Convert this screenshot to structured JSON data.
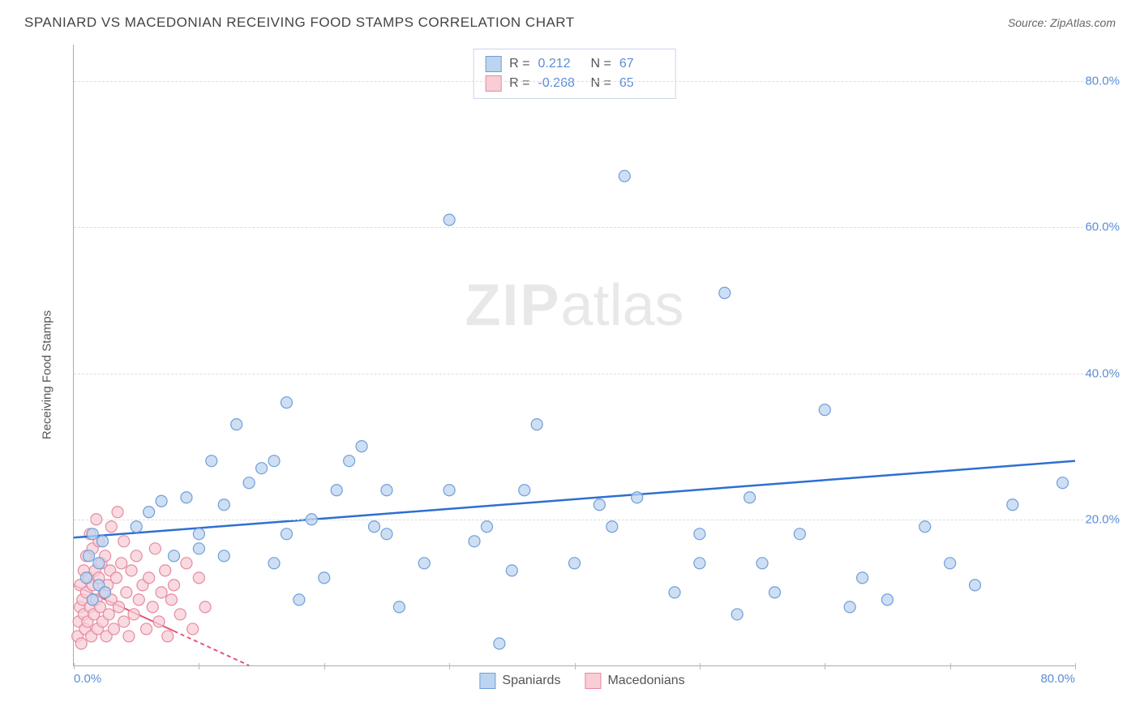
{
  "header": {
    "title": "SPANIARD VS MACEDONIAN RECEIVING FOOD STAMPS CORRELATION CHART",
    "source": "Source: ZipAtlas.com"
  },
  "y_axis_label": "Receiving Food Stamps",
  "watermark": {
    "left": "ZIP",
    "right": "atlas"
  },
  "chart": {
    "type": "scatter",
    "xlim": [
      0,
      80
    ],
    "ylim": [
      0,
      85
    ],
    "x_ticks": [
      0,
      10,
      20,
      30,
      40,
      50,
      60,
      70,
      80
    ],
    "y_ticks": [
      20,
      40,
      60,
      80
    ],
    "y_tick_labels": [
      "20.0%",
      "40.0%",
      "60.0%",
      "80.0%"
    ],
    "x_tick_labels_shown": {
      "0": "0.0%",
      "80": "80.0%"
    },
    "grid_color": "#dddddd",
    "axis_color": "#aaaaaa",
    "background_color": "#ffffff",
    "tick_label_color": "#5b8dd6",
    "point_radius": 7,
    "point_stroke_width": 1.2,
    "series": {
      "spaniards": {
        "label": "Spaniards",
        "fill": "#bdd4f0",
        "stroke": "#6f9fd8",
        "trend": {
          "x1": 0,
          "y1": 17.5,
          "x2": 80,
          "y2": 28,
          "color": "#2e6fd1",
          "width": 2.5,
          "dash": ""
        },
        "points": [
          [
            1,
            12
          ],
          [
            1.2,
            15
          ],
          [
            1.5,
            18
          ],
          [
            1.5,
            9
          ],
          [
            2,
            11
          ],
          [
            2,
            14
          ],
          [
            2.3,
            17
          ],
          [
            2.5,
            10
          ],
          [
            5,
            19
          ],
          [
            6,
            21
          ],
          [
            7,
            22.5
          ],
          [
            8,
            15
          ],
          [
            9,
            23
          ],
          [
            10,
            16
          ],
          [
            10,
            18
          ],
          [
            11,
            28
          ],
          [
            12,
            15
          ],
          [
            12,
            22
          ],
          [
            13,
            33
          ],
          [
            14,
            25
          ],
          [
            15,
            27
          ],
          [
            16,
            28
          ],
          [
            16,
            14
          ],
          [
            17,
            18
          ],
          [
            17,
            36
          ],
          [
            18,
            9
          ],
          [
            19,
            20
          ],
          [
            20,
            12
          ],
          [
            21,
            24
          ],
          [
            22,
            28
          ],
          [
            23,
            30
          ],
          [
            24,
            19
          ],
          [
            25,
            18
          ],
          [
            25,
            24
          ],
          [
            26,
            8
          ],
          [
            28,
            14
          ],
          [
            30,
            24
          ],
          [
            30,
            61
          ],
          [
            32,
            17
          ],
          [
            33,
            19
          ],
          [
            34,
            3
          ],
          [
            35,
            13
          ],
          [
            36,
            24
          ],
          [
            37,
            33
          ],
          [
            40,
            14
          ],
          [
            42,
            22
          ],
          [
            43,
            19
          ],
          [
            44,
            67
          ],
          [
            45,
            23
          ],
          [
            48,
            10
          ],
          [
            50,
            14
          ],
          [
            50,
            18
          ],
          [
            52,
            51
          ],
          [
            53,
            7
          ],
          [
            54,
            23
          ],
          [
            55,
            14
          ],
          [
            56,
            10
          ],
          [
            58,
            18
          ],
          [
            60,
            35
          ],
          [
            62,
            8
          ],
          [
            63,
            12
          ],
          [
            65,
            9
          ],
          [
            68,
            19
          ],
          [
            70,
            14
          ],
          [
            72,
            11
          ],
          [
            75,
            22
          ],
          [
            79,
            25
          ]
        ]
      },
      "macedonians": {
        "label": "Macedonians",
        "fill": "#f7cdd6",
        "stroke": "#e68aa0",
        "trend": {
          "x1": 0,
          "y1": 11,
          "x2": 14,
          "y2": 0,
          "color": "#e05577",
          "width": 2,
          "dash": "5,4"
        },
        "trend_solid_until_x": 8,
        "points": [
          [
            0.3,
            4
          ],
          [
            0.4,
            6
          ],
          [
            0.5,
            8
          ],
          [
            0.5,
            11
          ],
          [
            0.6,
            3
          ],
          [
            0.7,
            9
          ],
          [
            0.8,
            7
          ],
          [
            0.8,
            13
          ],
          [
            0.9,
            5
          ],
          [
            1.0,
            10
          ],
          [
            1.0,
            15
          ],
          [
            1.1,
            6
          ],
          [
            1.2,
            12
          ],
          [
            1.3,
            8
          ],
          [
            1.3,
            18
          ],
          [
            1.4,
            4
          ],
          [
            1.5,
            11
          ],
          [
            1.5,
            16
          ],
          [
            1.6,
            7
          ],
          [
            1.7,
            13
          ],
          [
            1.8,
            9
          ],
          [
            1.8,
            20
          ],
          [
            1.9,
            5
          ],
          [
            2.0,
            12
          ],
          [
            2.0,
            17
          ],
          [
            2.1,
            8
          ],
          [
            2.2,
            14
          ],
          [
            2.3,
            6
          ],
          [
            2.4,
            10
          ],
          [
            2.5,
            15
          ],
          [
            2.6,
            4
          ],
          [
            2.7,
            11
          ],
          [
            2.8,
            7
          ],
          [
            2.9,
            13
          ],
          [
            3.0,
            9
          ],
          [
            3.0,
            19
          ],
          [
            3.2,
            5
          ],
          [
            3.4,
            12
          ],
          [
            3.5,
            21
          ],
          [
            3.6,
            8
          ],
          [
            3.8,
            14
          ],
          [
            4.0,
            6
          ],
          [
            4.0,
            17
          ],
          [
            4.2,
            10
          ],
          [
            4.4,
            4
          ],
          [
            4.6,
            13
          ],
          [
            4.8,
            7
          ],
          [
            5.0,
            15
          ],
          [
            5.2,
            9
          ],
          [
            5.5,
            11
          ],
          [
            5.8,
            5
          ],
          [
            6.0,
            12
          ],
          [
            6.3,
            8
          ],
          [
            6.5,
            16
          ],
          [
            6.8,
            6
          ],
          [
            7.0,
            10
          ],
          [
            7.3,
            13
          ],
          [
            7.5,
            4
          ],
          [
            7.8,
            9
          ],
          [
            8.0,
            11
          ],
          [
            8.5,
            7
          ],
          [
            9.0,
            14
          ],
          [
            9.5,
            5
          ],
          [
            10,
            12
          ],
          [
            10.5,
            8
          ]
        ]
      }
    }
  },
  "stats_legend": {
    "rows": [
      {
        "swatch_fill": "#bdd4f0",
        "swatch_stroke": "#6f9fd8",
        "r_label": "R =",
        "r_value": "0.212",
        "n_label": "N =",
        "n_value": "67"
      },
      {
        "swatch_fill": "#f7cdd6",
        "swatch_stroke": "#e68aa0",
        "r_label": "R =",
        "r_value": "-0.268",
        "n_label": "N =",
        "n_value": "65"
      }
    ]
  },
  "bottom_legend": {
    "items": [
      {
        "fill": "#bdd4f0",
        "stroke": "#6f9fd8",
        "label": "Spaniards"
      },
      {
        "fill": "#f7cdd6",
        "stroke": "#e68aa0",
        "label": "Macedonians"
      }
    ]
  }
}
